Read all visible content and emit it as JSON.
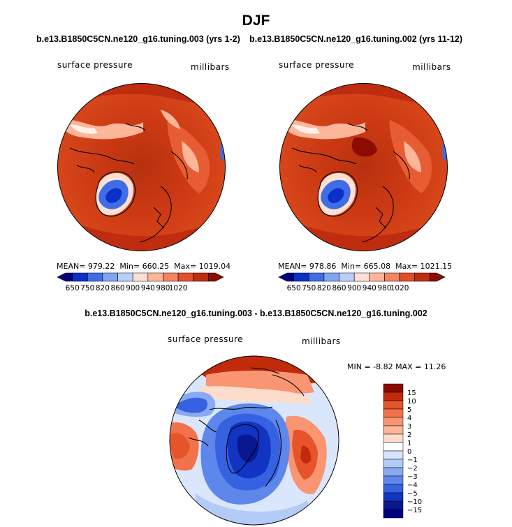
{
  "figure_title": "DJF",
  "chart_data": [
    {
      "type": "heatmap",
      "projection": "north polar stereographic",
      "title": "b.e13.B1850C5CN.ne120_g16.tuning.003 (yrs 1-2)",
      "left_label": "surface pressure",
      "right_label": "millibars",
      "stats": {
        "mean": "979.22",
        "min": "660.25",
        "max": "1019.04"
      },
      "stats_labels": {
        "mean": "MEAN=",
        "min": "Min=",
        "max": "Max="
      },
      "colorbar": {
        "orientation": "horizontal",
        "levels": [
          "650",
          "750",
          "820",
          "860",
          "900",
          "940",
          "980",
          "1020"
        ]
      }
    },
    {
      "type": "heatmap",
      "projection": "north polar stereographic",
      "title": "b.e13.B1850C5CN.ne120_g16.tuning.002 (yrs 11-12)",
      "left_label": "surface pressure",
      "right_label": "millibars",
      "stats": {
        "mean": "978.86",
        "min": "665.08",
        "max": "1021.15"
      },
      "stats_labels": {
        "mean": "MEAN=",
        "min": "Min=",
        "max": "Max="
      },
      "colorbar": {
        "orientation": "horizontal",
        "levels": [
          "650",
          "750",
          "820",
          "860",
          "900",
          "940",
          "980",
          "1020"
        ]
      }
    },
    {
      "type": "heatmap",
      "projection": "north polar stereographic",
      "title": "b.e13.B1850C5CN.ne120_g16.tuning.003 - b.e13.B1850C5CN.ne120_g16.tuning.002",
      "left_label": "surface pressure",
      "right_label": "millibars",
      "stats_text": "MIN =  -8.82  MAX =  11.26",
      "colorbar": {
        "orientation": "vertical",
        "levels": [
          "15",
          "10",
          "5",
          "4",
          "3",
          "2",
          "1",
          "0",
          "−1",
          "−2",
          "−3",
          "−4",
          "−5",
          "−10",
          "−15"
        ]
      }
    }
  ],
  "colors": {
    "seq": [
      "#00007d",
      "#0b2fc8",
      "#3e6de6",
      "#7ea4f3",
      "#b9cef8",
      "#ffe0d2",
      "#fdb69a",
      "#f58460",
      "#e34e2a",
      "#c02c10",
      "#8c0c00"
    ],
    "div": [
      "#8b0a00",
      "#c22a0c",
      "#e5542a",
      "#f2724a",
      "#f99572",
      "#fdb798",
      "#fedccc",
      "#ffffff",
      "#d5e5fb",
      "#b2cbf7",
      "#89aaf1",
      "#5d87ea",
      "#3661e0",
      "#1234c2",
      "#0a188f",
      "#000080"
    ],
    "land": "#000000"
  }
}
